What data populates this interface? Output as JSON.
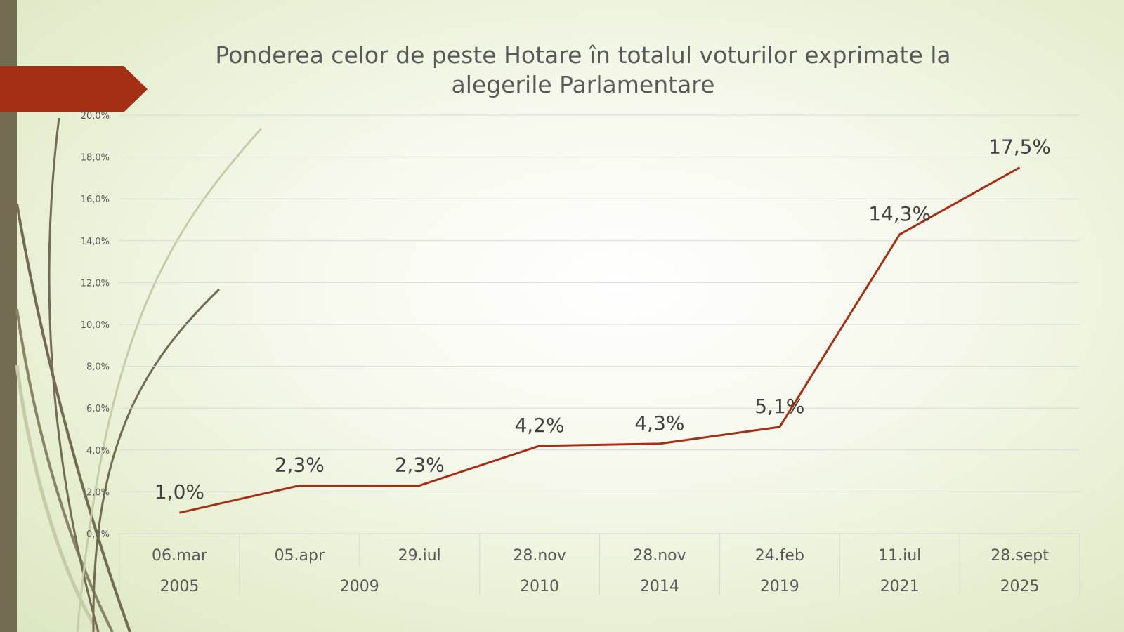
{
  "chart_data": {
    "type": "line",
    "title": "Ponderea celor de peste Hotare în totalul voturilor exprimate la alegerile Parlamentare",
    "xlabel": "",
    "ylabel": "",
    "ylim": [
      0,
      20
    ],
    "y_ticks": [
      "0,0%",
      "2,0%",
      "4,0%",
      "6,0%",
      "8,0%",
      "10,0%",
      "12,0%",
      "14,0%",
      "16,0%",
      "18,0%",
      "20,0%"
    ],
    "categories": [
      "06.mar",
      "05.apr",
      "29.iul",
      "28.nov",
      "28.nov",
      "24.feb",
      "11.iul",
      "28.sept"
    ],
    "years": [
      {
        "label": "2005",
        "span": 1
      },
      {
        "label": "2009",
        "span": 2
      },
      {
        "label": "2010",
        "span": 1
      },
      {
        "label": "2014",
        "span": 1
      },
      {
        "label": "2019",
        "span": 1
      },
      {
        "label": "2021",
        "span": 1
      },
      {
        "label": "2025",
        "span": 1
      }
    ],
    "values": [
      1.0,
      2.3,
      2.3,
      4.2,
      4.3,
      5.1,
      14.3,
      17.5
    ],
    "data_labels": [
      "1,0%",
      "2,3%",
      "2,3%",
      "4,2%",
      "4,3%",
      "5,1%",
      "14,3%",
      "17,5%"
    ],
    "grid": true,
    "legend": "none",
    "line_color": "#a42f15"
  },
  "theme": {
    "accent": "#a42f15",
    "side_bar": "#736b52",
    "grid_color": "#d9d9d9"
  }
}
